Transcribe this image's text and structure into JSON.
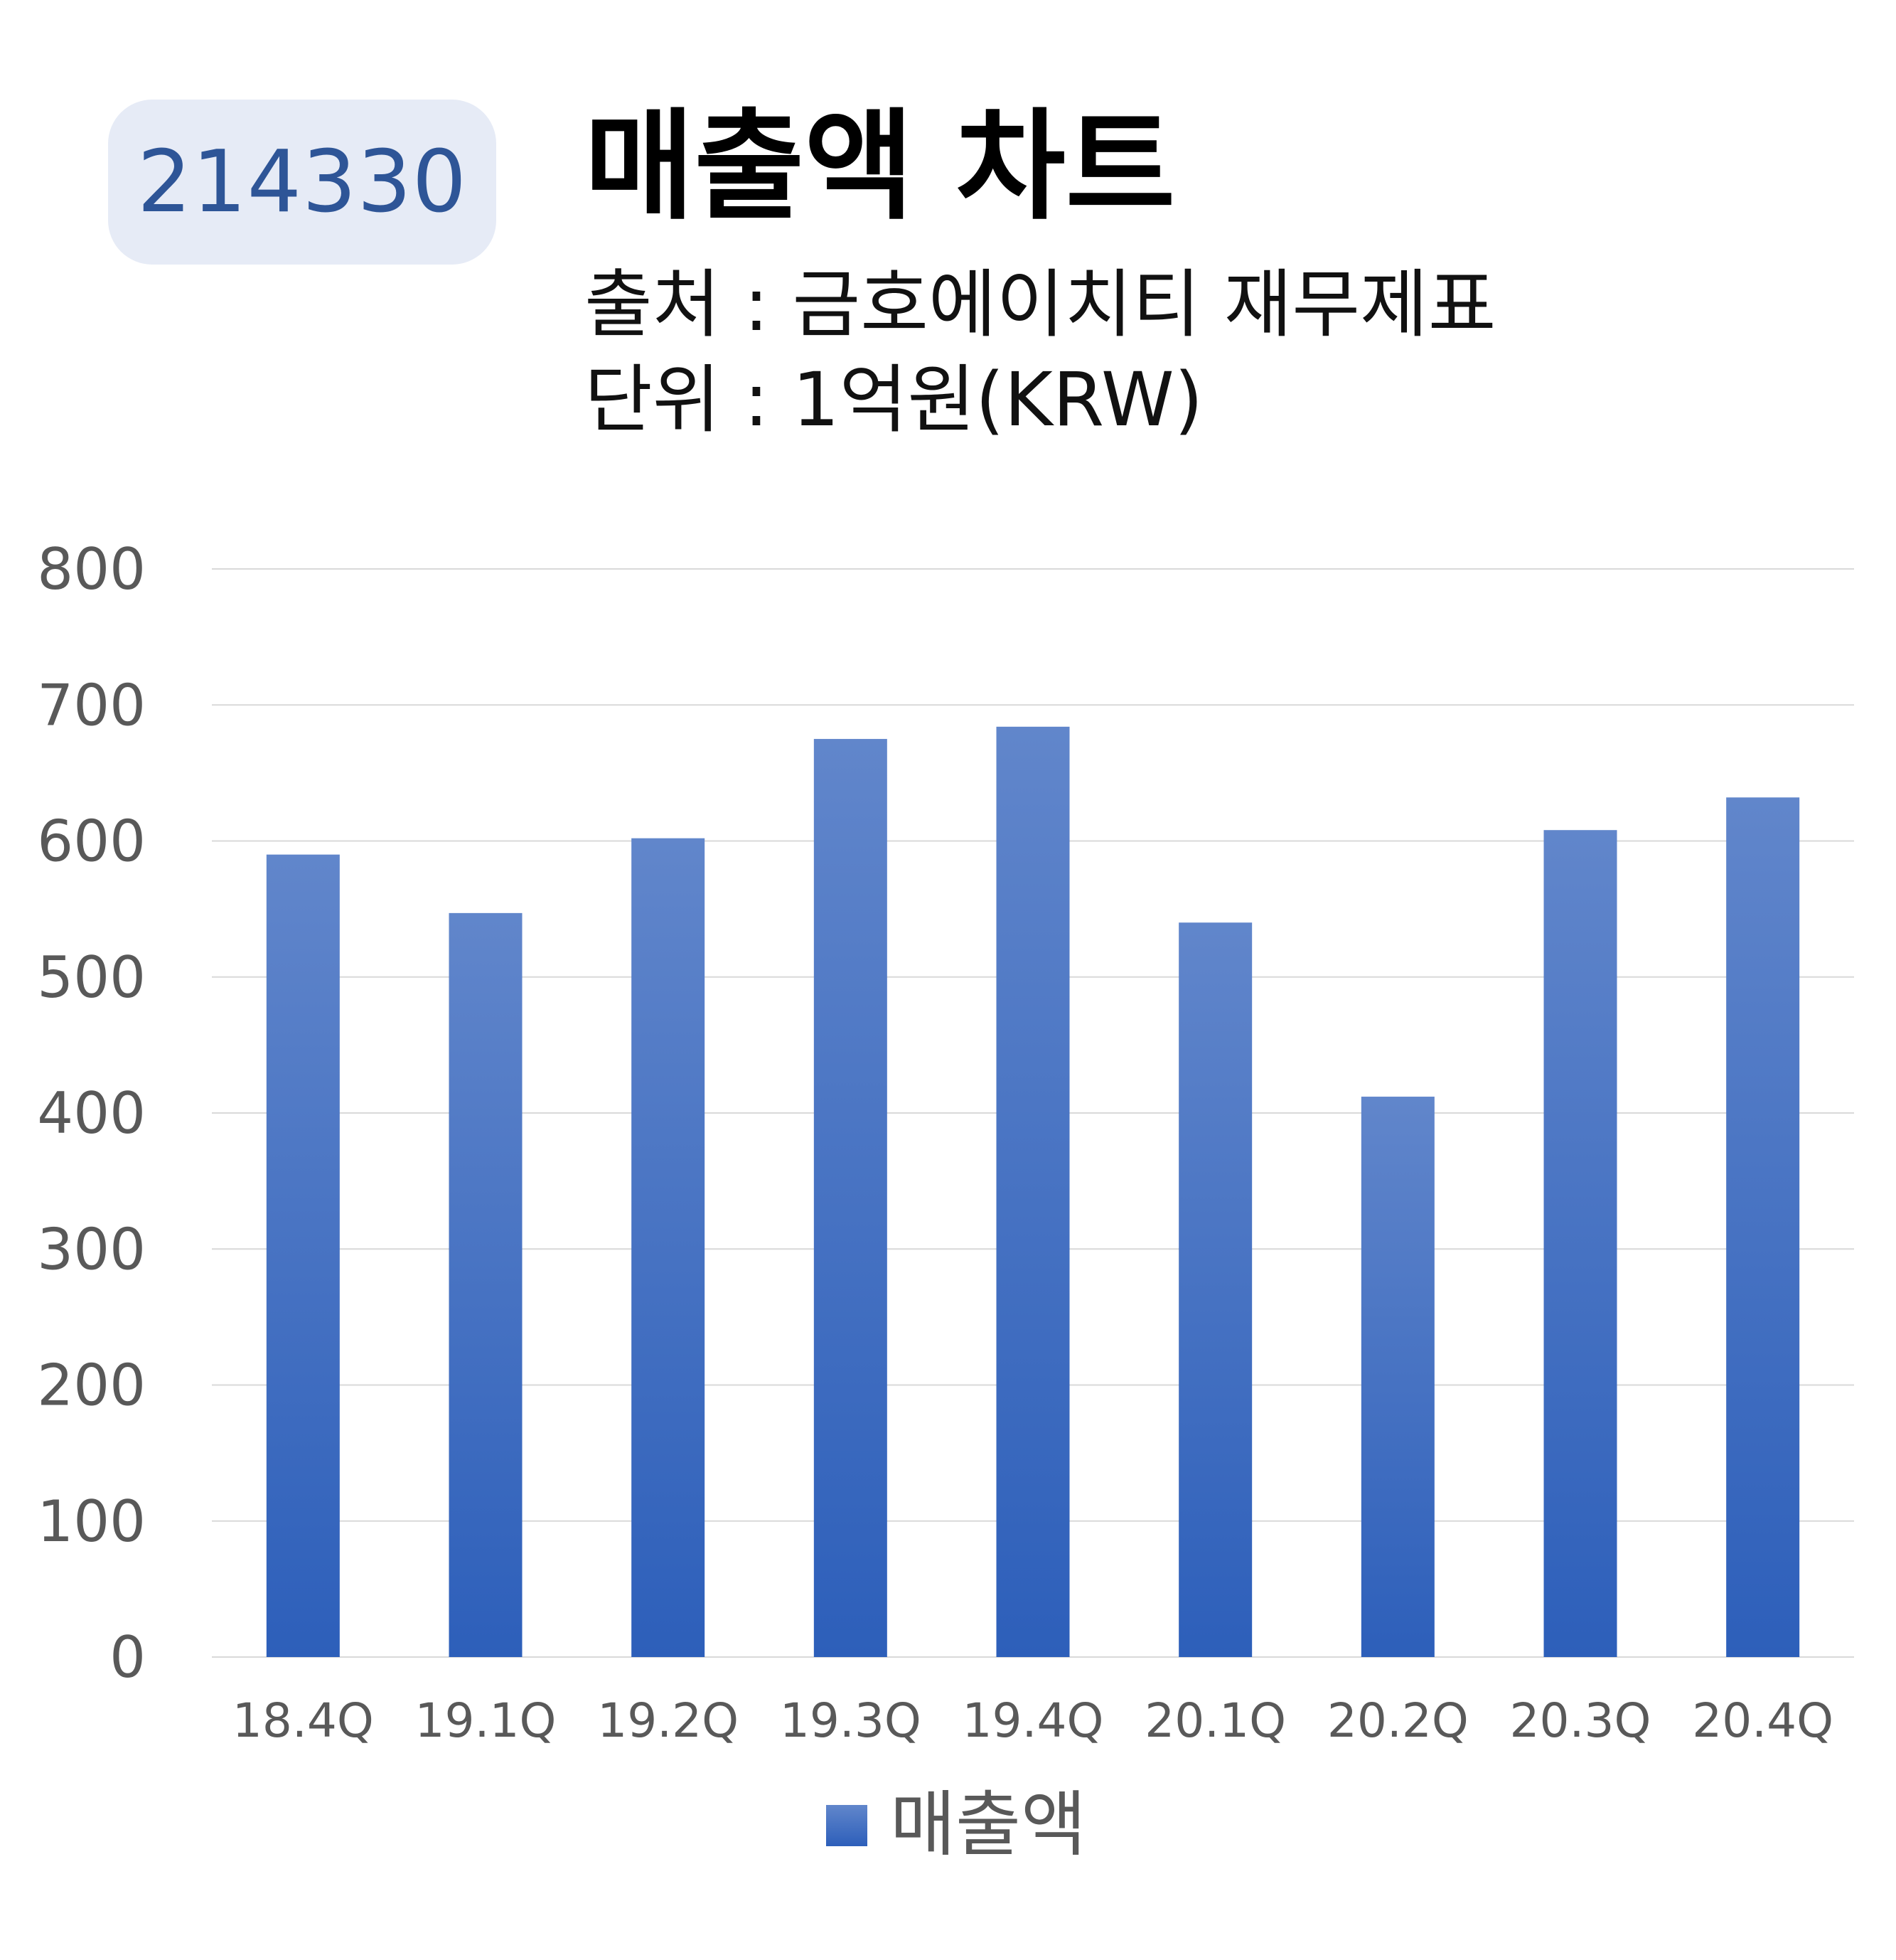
{
  "badge": {
    "code": "214330"
  },
  "header": {
    "title": "매출액 차트",
    "source": "출처 : 금호에이치티 재무제표",
    "unit": "단위 : 1억원(KRW)"
  },
  "chart_data": {
    "type": "bar",
    "categories": [
      "18.4Q",
      "19.1Q",
      "19.2Q",
      "19.3Q",
      "19.4Q",
      "20.1Q",
      "20.2Q",
      "20.3Q",
      "20.4Q"
    ],
    "series": [
      {
        "name": "매출액",
        "values": [
          590,
          547,
          602,
          675,
          684,
          540,
          412,
          608,
          632
        ]
      }
    ],
    "y_ticks": [
      "0",
      "100",
      "200",
      "300",
      "400",
      "500",
      "600",
      "700",
      "800"
    ],
    "ylim": [
      0,
      800
    ],
    "grid": true,
    "legend_position": "bottom-center",
    "colors": {
      "bar_top": "#6186cb",
      "bar_bottom": "#2d5fba",
      "grid": "#d9d9d9"
    }
  }
}
